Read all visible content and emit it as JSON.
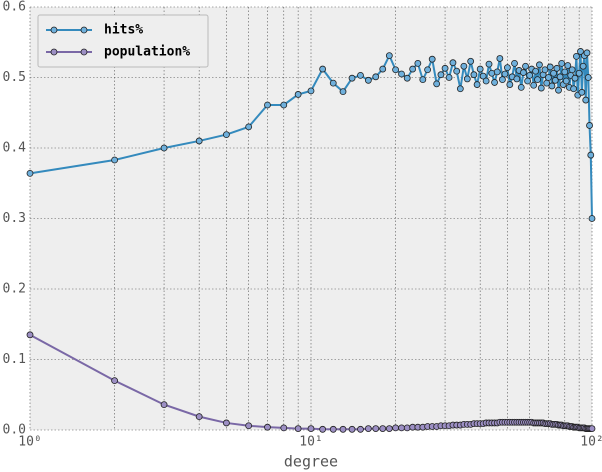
{
  "chart_data": {
    "type": "line",
    "xlabel": "degree",
    "xscale": "log",
    "x": [
      1,
      2,
      3,
      4,
      5,
      6,
      7,
      8,
      9,
      10,
      11,
      12,
      13,
      14,
      15,
      16,
      17,
      18,
      19,
      20,
      21,
      22,
      23,
      24,
      25,
      26,
      27,
      28,
      29,
      30,
      31,
      32,
      33,
      34,
      35,
      36,
      37,
      38,
      39,
      40,
      41,
      42,
      43,
      44,
      45,
      46,
      47,
      48,
      49,
      50,
      51,
      52,
      53,
      54,
      55,
      56,
      57,
      58,
      59,
      60,
      61,
      62,
      63,
      64,
      65,
      66,
      67,
      68,
      69,
      70,
      71,
      72,
      73,
      74,
      75,
      76,
      77,
      78,
      79,
      80,
      81,
      82,
      83,
      84,
      85,
      86,
      87,
      88,
      89,
      90,
      91,
      92,
      93,
      94,
      95,
      96,
      97,
      98,
      99,
      100
    ],
    "series": [
      {
        "name": "hits%",
        "color": "#348abd",
        "marker_color": "#6fb0dc",
        "values": [
          0.364,
          0.383,
          0.4,
          0.41,
          0.419,
          0.43,
          0.461,
          0.461,
          0.476,
          0.481,
          0.512,
          0.492,
          0.48,
          0.499,
          0.503,
          0.496,
          0.501,
          0.512,
          0.531,
          0.511,
          0.505,
          0.499,
          0.512,
          0.52,
          0.497,
          0.511,
          0.526,
          0.491,
          0.504,
          0.513,
          0.5,
          0.521,
          0.509,
          0.484,
          0.516,
          0.498,
          0.523,
          0.504,
          0.49,
          0.512,
          0.502,
          0.495,
          0.519,
          0.506,
          0.493,
          0.508,
          0.527,
          0.497,
          0.505,
          0.514,
          0.49,
          0.501,
          0.52,
          0.498,
          0.51,
          0.486,
          0.507,
          0.516,
          0.495,
          0.503,
          0.512,
          0.489,
          0.509,
          0.497,
          0.518,
          0.485,
          0.504,
          0.511,
          0.492,
          0.5,
          0.515,
          0.488,
          0.506,
          0.496,
          0.513,
          0.482,
          0.501,
          0.52,
          0.49,
          0.508,
          0.495,
          0.517,
          0.486,
          0.503,
          0.511,
          0.484,
          0.499,
          0.53,
          0.475,
          0.506,
          0.537,
          0.479,
          0.516,
          0.531,
          0.468,
          0.535,
          0.5,
          0.432,
          0.39,
          0.3
        ]
      },
      {
        "name": "population%",
        "color": "#7a68a6",
        "marker_color": "#9c8fc4",
        "values": [
          0.135,
          0.07,
          0.036,
          0.019,
          0.01,
          0.006,
          0.004,
          0.003,
          0.002,
          0.002,
          0.001,
          0.001,
          0.001,
          0.001,
          0.001,
          0.002,
          0.002,
          0.002,
          0.002,
          0.003,
          0.003,
          0.003,
          0.004,
          0.004,
          0.004,
          0.005,
          0.005,
          0.005,
          0.006,
          0.006,
          0.006,
          0.007,
          0.007,
          0.007,
          0.008,
          0.008,
          0.008,
          0.009,
          0.009,
          0.009,
          0.009,
          0.01,
          0.01,
          0.01,
          0.01,
          0.01,
          0.011,
          0.011,
          0.011,
          0.011,
          0.011,
          0.011,
          0.011,
          0.011,
          0.011,
          0.011,
          0.011,
          0.011,
          0.011,
          0.011,
          0.011,
          0.01,
          0.01,
          0.01,
          0.01,
          0.01,
          0.01,
          0.009,
          0.009,
          0.009,
          0.009,
          0.008,
          0.008,
          0.008,
          0.008,
          0.007,
          0.007,
          0.007,
          0.006,
          0.006,
          0.006,
          0.006,
          0.005,
          0.005,
          0.005,
          0.004,
          0.004,
          0.004,
          0.004,
          0.003,
          0.003,
          0.003,
          0.003,
          0.003,
          0.002,
          0.002,
          0.002,
          0.002,
          0.002,
          0.002
        ]
      }
    ],
    "xlim": [
      1,
      100
    ],
    "xticks": [
      {
        "value": 1,
        "label": "10⁰"
      },
      {
        "value": 10,
        "label": "10¹"
      },
      {
        "value": 100,
        "label": "10²"
      }
    ],
    "xminorticks": [
      2,
      3,
      4,
      5,
      6,
      7,
      8,
      9,
      20,
      30,
      40,
      50,
      60,
      70,
      80,
      90
    ],
    "ylim": [
      0,
      0.6
    ],
    "yticks": [
      {
        "value": 0,
        "label": "0.0"
      },
      0.1,
      0.2,
      0.3,
      0.4,
      0.5,
      0.6
    ],
    "grid": true,
    "legend": "upper left"
  }
}
